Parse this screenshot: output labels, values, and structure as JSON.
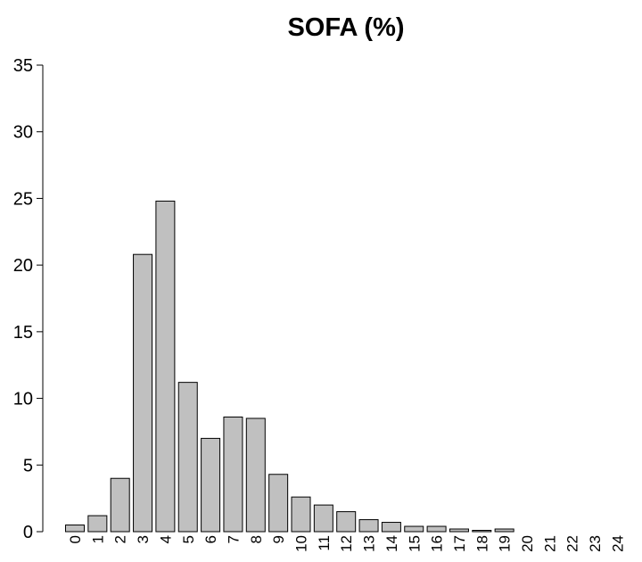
{
  "chart_data": {
    "type": "bar",
    "title": "SOFA (%)",
    "xlabel": "",
    "ylabel": "",
    "categories": [
      "0",
      "1",
      "2",
      "3",
      "4",
      "5",
      "6",
      "7",
      "8",
      "9",
      "10",
      "11",
      "12",
      "13",
      "14",
      "15",
      "16",
      "17",
      "18",
      "19",
      "20",
      "21",
      "22",
      "23",
      "24"
    ],
    "values": [
      0.5,
      1.2,
      4.0,
      20.8,
      24.8,
      11.2,
      7.0,
      8.6,
      8.5,
      4.3,
      2.6,
      2.0,
      1.5,
      0.9,
      0.7,
      0.4,
      0.4,
      0.2,
      0.1,
      0.2,
      0.0,
      0.0,
      0.0,
      0.0,
      0.0
    ],
    "ylim": [
      0,
      35
    ],
    "yticks": [
      0,
      5,
      10,
      15,
      20,
      25,
      30,
      35
    ],
    "bar_color": "#c0c0c0",
    "edge_color": "#000000",
    "grid": false,
    "legend": "none"
  }
}
